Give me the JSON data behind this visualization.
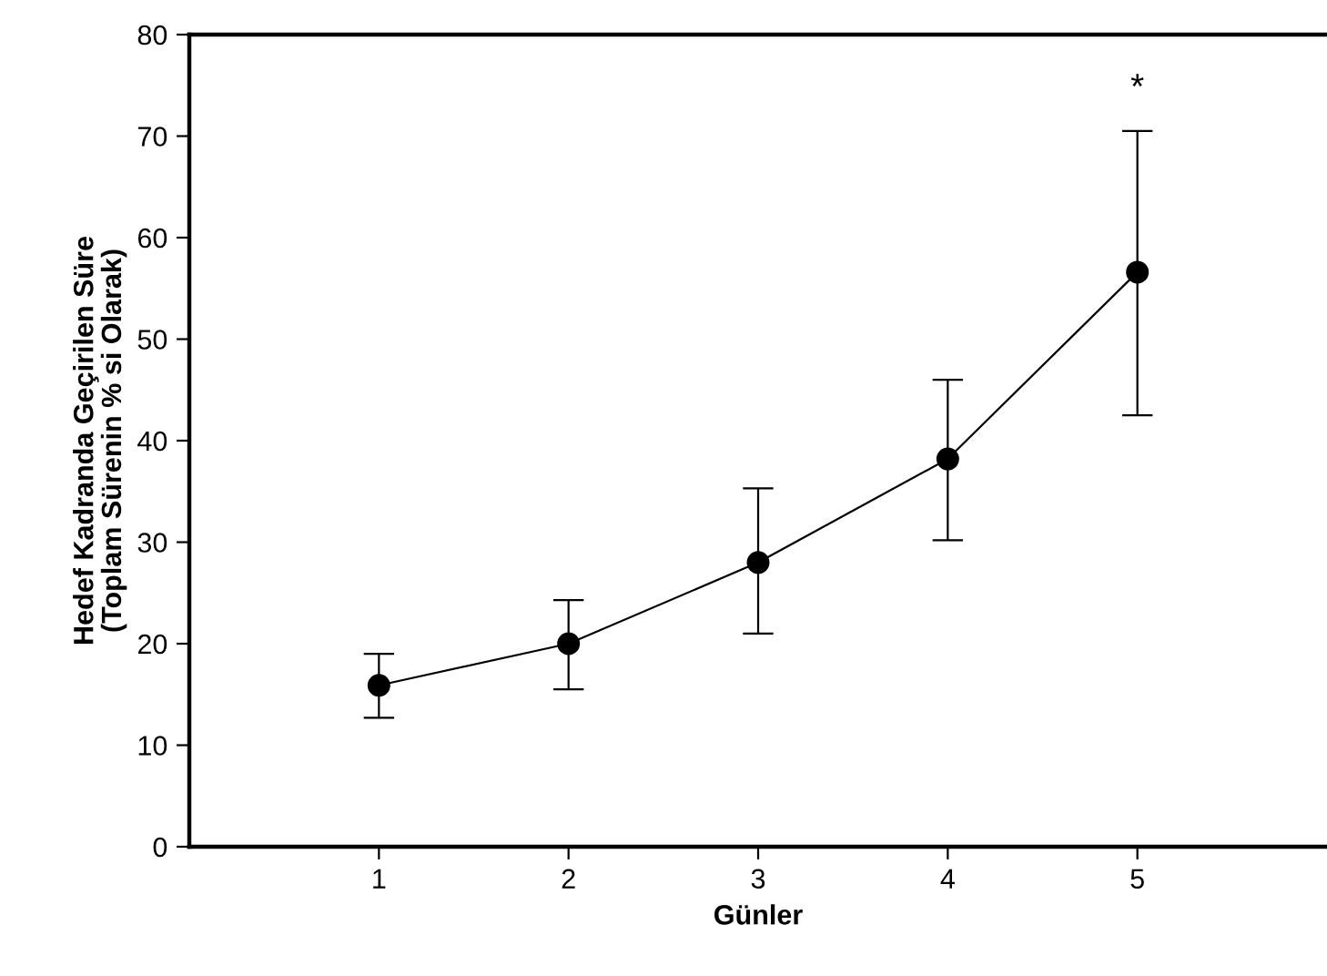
{
  "chart_data": {
    "type": "line",
    "xlabel": "Günler",
    "ylabel": "Hedef Kadranda Geçirilen Süre\n(Toplam Sürenin % si Olarak)",
    "x": [
      1,
      2,
      3,
      4,
      5
    ],
    "series": [
      {
        "color": "#000000",
        "values": [
          15.9,
          20.0,
          28.0,
          38.2,
          56.6
        ],
        "errors": [
          [
            12.7,
            19.0
          ],
          [
            15.5,
            24.3
          ],
          [
            21.0,
            35.3
          ],
          [
            30.2,
            46.0
          ],
          [
            42.5,
            70.5
          ]
        ]
      }
    ],
    "xlim": [
      0,
      6
    ],
    "xticks": [
      1,
      2,
      3,
      4,
      5
    ],
    "ylim": [
      0,
      80
    ],
    "yticks": [
      0,
      10,
      20,
      30,
      40,
      50,
      60,
      70,
      80
    ],
    "annotations": [
      {
        "text": "*",
        "x": 5,
        "y": 70.5
      }
    ],
    "marker": "circle",
    "line_style": "solid",
    "grid": false,
    "legend": false
  }
}
